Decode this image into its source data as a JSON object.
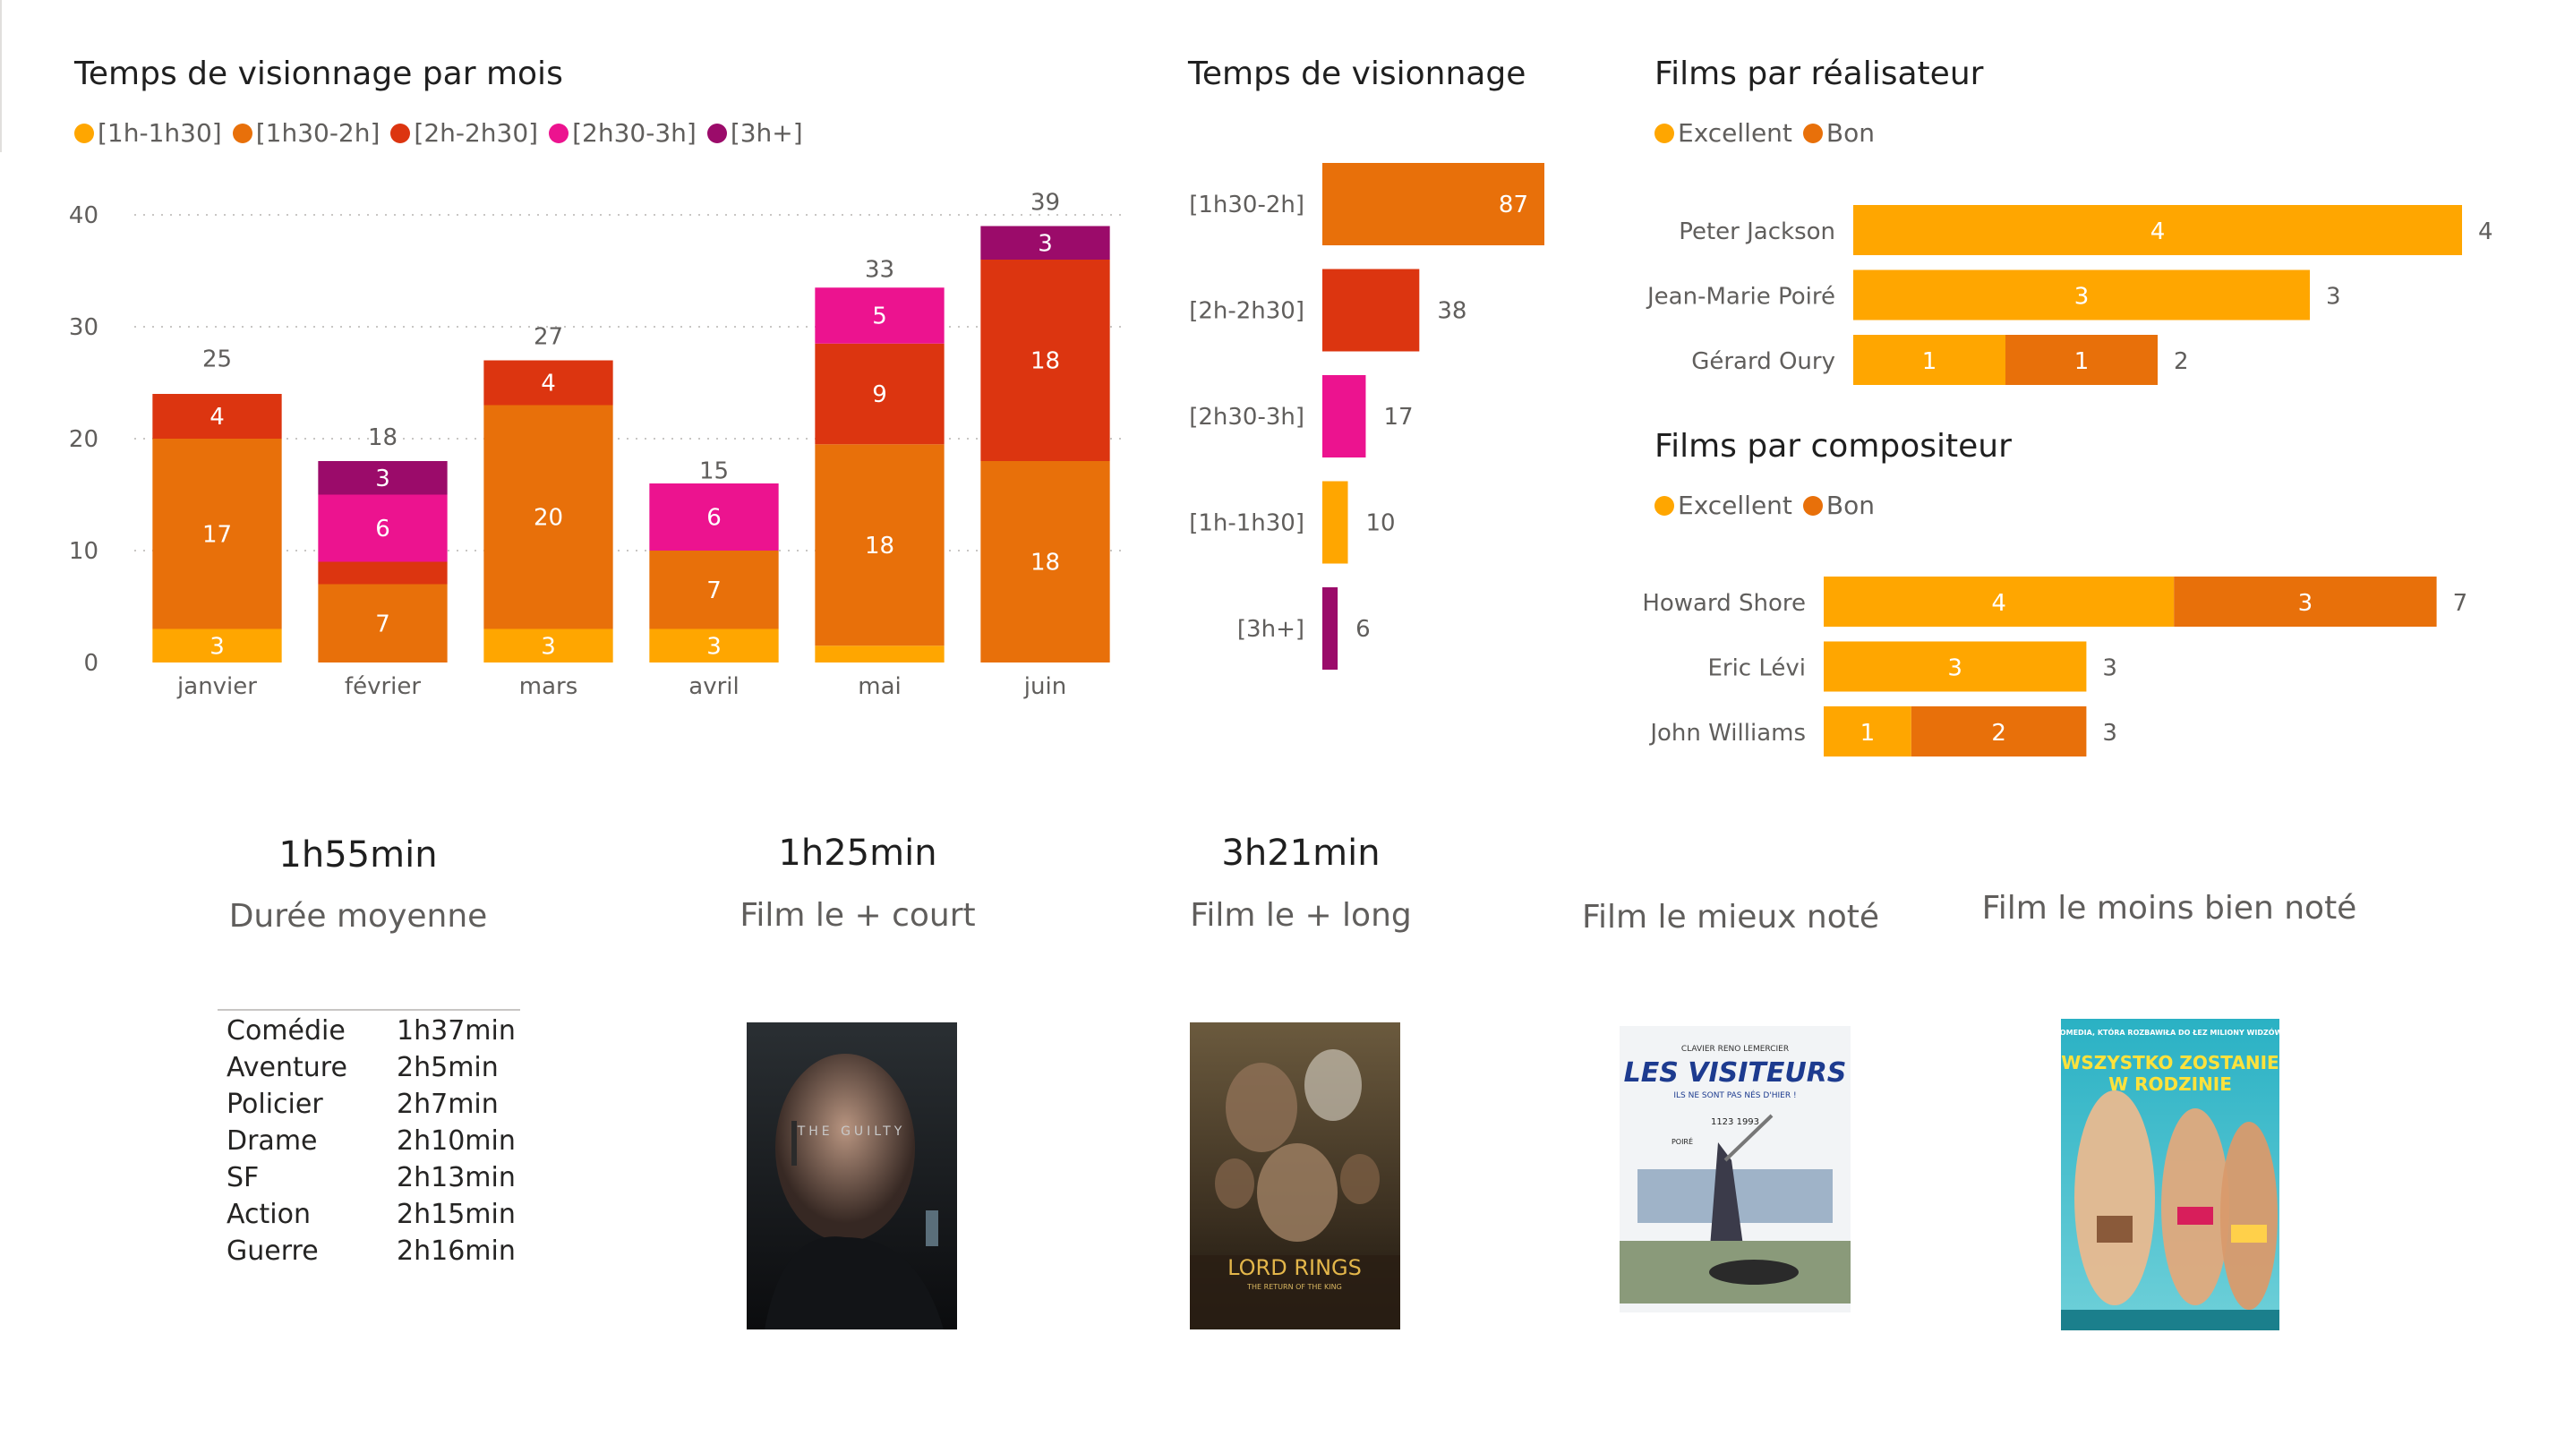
{
  "colors": {
    "c1": "#FFA600",
    "c2": "#E8700A",
    "c3": "#DC3510",
    "c4": "#EC138F",
    "c5": "#9B0B6A",
    "excellent": "#FFA600",
    "bon": "#E8700A"
  },
  "monthly": {
    "title": "Temps de visionnage par mois",
    "legend": [
      {
        "label": "[1h-1h30]",
        "color": "#FFA600"
      },
      {
        "label": "[1h30-2h]",
        "color": "#E8700A"
      },
      {
        "label": "[2h-2h30]",
        "color": "#DC3510"
      },
      {
        "label": "[2h30-3h]",
        "color": "#EC138F"
      },
      {
        "label": "[3h+]",
        "color": "#9B0B6A"
      }
    ]
  },
  "watch": {
    "title": "Temps de visionnage"
  },
  "directors": {
    "title": "Films par réalisateur",
    "legend": [
      {
        "label": "Excellent",
        "color": "#FFA600"
      },
      {
        "label": "Bon",
        "color": "#E8700A"
      }
    ]
  },
  "composers": {
    "title": "Films par compositeur",
    "legend": [
      {
        "label": "Excellent",
        "color": "#FFA600"
      },
      {
        "label": "Bon",
        "color": "#E8700A"
      }
    ]
  },
  "chart_data": [
    {
      "type": "bar",
      "stacked": true,
      "title": "Temps de visionnage par mois",
      "categories": [
        "janvier",
        "février",
        "mars",
        "avril",
        "mai",
        "juin"
      ],
      "series": [
        {
          "name": "[1h-1h30]",
          "values": [
            3,
            0,
            3,
            3,
            1.5,
            0
          ]
        },
        {
          "name": "[1h30-2h]",
          "values": [
            17,
            7,
            20,
            7,
            18,
            18
          ]
        },
        {
          "name": "[2h-2h30]",
          "values": [
            4,
            2,
            4,
            0,
            9,
            18
          ]
        },
        {
          "name": "[2h30-3h]",
          "values": [
            0,
            6,
            0,
            6,
            5,
            0
          ]
        },
        {
          "name": "[3h+]",
          "values": [
            0,
            3,
            0,
            0,
            0,
            3
          ]
        }
      ],
      "totals": [
        25,
        18,
        27,
        15,
        33,
        39
      ],
      "ylim": [
        0,
        40
      ],
      "yticks": [
        0,
        10,
        20,
        30,
        40
      ],
      "grid": true,
      "legend": "top-left"
    },
    {
      "type": "bar",
      "orientation": "horizontal",
      "title": "Temps de visionnage",
      "categories": [
        "[1h30-2h]",
        "[2h-2h30]",
        "[2h30-3h]",
        "[1h-1h30]",
        "[3h+]"
      ],
      "values": [
        87,
        38,
        17,
        10,
        6
      ]
    },
    {
      "type": "bar",
      "orientation": "horizontal",
      "stacked": true,
      "title": "Films par réalisateur",
      "categories": [
        "Peter Jackson",
        "Jean-Marie Poiré",
        "Gérard Oury"
      ],
      "series": [
        {
          "name": "Excellent",
          "values": [
            4,
            3,
            1
          ]
        },
        {
          "name": "Bon",
          "values": [
            0,
            0,
            1
          ]
        }
      ],
      "totals": [
        4,
        3,
        2
      ],
      "legend": "top-left"
    },
    {
      "type": "bar",
      "orientation": "horizontal",
      "stacked": true,
      "title": "Films par compositeur",
      "categories": [
        "Howard Shore",
        "Eric Lévi",
        "John Williams"
      ],
      "series": [
        {
          "name": "Excellent",
          "values": [
            4,
            3,
            1
          ]
        },
        {
          "name": "Bon",
          "values": [
            3,
            0,
            2
          ]
        }
      ],
      "totals": [
        7,
        3,
        3
      ],
      "legend": "top-left"
    }
  ],
  "kpis": [
    {
      "value": "1h55min",
      "label": "Durée moyenne"
    },
    {
      "value": "1h25min",
      "label": "Film le + court"
    },
    {
      "value": "3h21min",
      "label": "Film le + long"
    },
    {
      "value": "",
      "label": "Film le mieux noté"
    },
    {
      "value": "",
      "label": "Film le moins bien noté"
    }
  ],
  "genres": [
    {
      "genre": "Comédie",
      "duration": "1h37min"
    },
    {
      "genre": "Aventure",
      "duration": "2h5min"
    },
    {
      "genre": "Policier",
      "duration": "2h7min"
    },
    {
      "genre": "Drame",
      "duration": "2h10min"
    },
    {
      "genre": "SF",
      "duration": "2h13min"
    },
    {
      "genre": "Action",
      "duration": "2h15min"
    },
    {
      "genre": "Guerre",
      "duration": "2h16min"
    }
  ],
  "posters": {
    "guilty": {
      "title": "THE GUILTY"
    },
    "lotr": {
      "logo": "LORD RINGS",
      "subtitle": "THE RETURN OF THE KING"
    },
    "visiteurs": {
      "top_names": "CLAVIER  RENO  LEMERCIER",
      "title": "LES VISITEURS",
      "tagline": "ILS NE SONT PAS NÉS D'HIER !",
      "years": "1123          1993",
      "director": "POIRÉ"
    },
    "wszystko": {
      "tagline": "KOMEDIA, KTÓRA ROZBAWIŁA DO ŁEZ MILIONY WIDZÓW!",
      "title_1": "WSZYSTKO ZOSTANIE",
      "title_2": "W RODZINIE"
    }
  }
}
